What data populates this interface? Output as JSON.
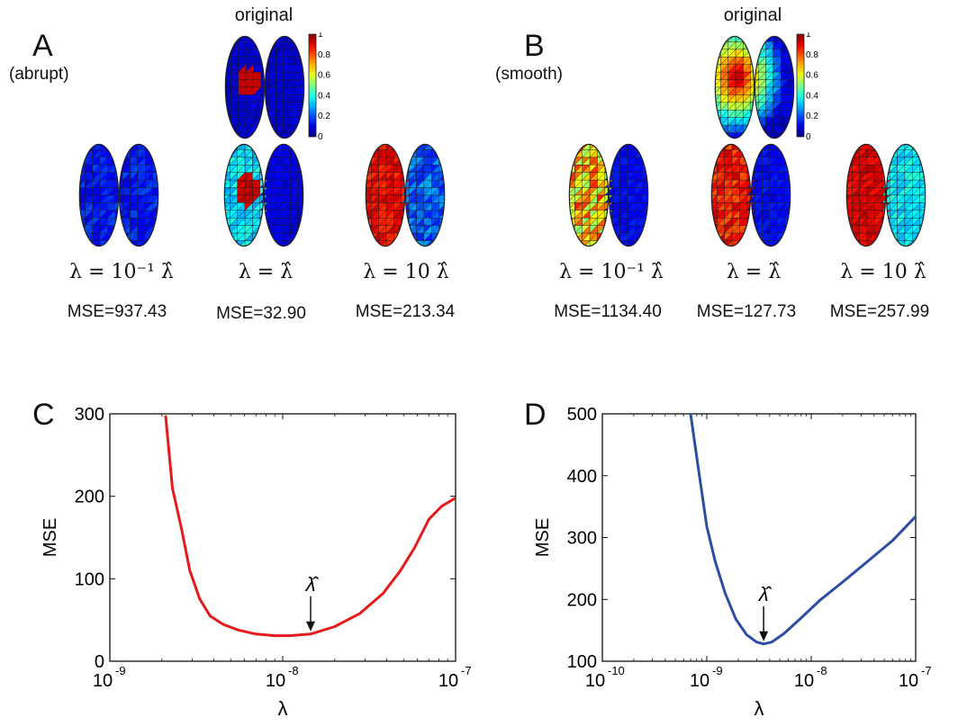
{
  "panels_top": [
    {
      "letter": "A",
      "condition": "(abrupt)",
      "original_label": "original",
      "colorbar_ticks": [
        "1",
        "0.8",
        "0.6",
        "0.4",
        "0.2",
        "0"
      ],
      "maps": [
        {
          "lambda_text": "λ = 10⁻¹ λ̂",
          "mse_text": "MSE=937.43"
        },
        {
          "lambda_text": "λ = λ̂",
          "mse_text": "MSE=32.90"
        },
        {
          "lambda_text": "λ = 10 λ̂",
          "mse_text": "MSE=213.34"
        }
      ]
    },
    {
      "letter": "B",
      "condition": "(smooth)",
      "original_label": "original",
      "colorbar_ticks": [
        "1",
        "0.8",
        "0.6",
        "0.4",
        "0.2",
        "0"
      ],
      "maps": [
        {
          "lambda_text": "λ = 10⁻¹ λ̂",
          "mse_text": "MSE=1134.40"
        },
        {
          "lambda_text": "λ = λ̂",
          "mse_text": "MSE=127.73"
        },
        {
          "lambda_text": "λ = 10 λ̂",
          "mse_text": "MSE=257.99"
        }
      ]
    }
  ],
  "chart_data": [
    {
      "panel": "C",
      "type": "line",
      "xscale": "log",
      "xlim": [
        1e-09,
        1e-07
      ],
      "ylim": [
        0,
        300
      ],
      "xticks": [
        1e-09,
        1e-08,
        1e-07
      ],
      "xtick_labels": [
        "10^-9",
        "10^-8",
        "10^-7"
      ],
      "yticks": [
        0,
        100,
        200,
        300
      ],
      "ytick_labels": [
        "0",
        "100",
        "200",
        "300"
      ],
      "xlabel": "λ",
      "ylabel": "MSE",
      "color": "#e41a1c",
      "annotation": {
        "text": "λ̂",
        "x": 1.45e-08,
        "y": 33
      },
      "series": [
        {
          "x": [
            2.1e-09,
            2.3e-09,
            2.6e-09,
            2.9e-09,
            3.3e-09,
            3.8e-09,
            4.5e-09,
            5.5e-09,
            7e-09,
            9e-09,
            1.1e-08,
            1.45e-08,
            2e-08,
            2.8e-08,
            3.8e-08,
            4.8e-08,
            5.8e-08,
            7e-08,
            8.3e-08,
            1e-07
          ],
          "y": [
            298,
            210,
            160,
            110,
            76,
            55,
            45,
            38,
            33,
            31,
            31,
            33,
            42,
            58,
            82,
            110,
            138,
            172,
            188,
            198
          ]
        }
      ]
    },
    {
      "panel": "D",
      "type": "line",
      "xscale": "log",
      "xlim": [
        1e-10,
        1e-07
      ],
      "ylim": [
        100,
        500
      ],
      "xticks": [
        1e-10,
        1e-09,
        1e-08,
        1e-07
      ],
      "xtick_labels": [
        "10^-10",
        "10^-9",
        "10^-8",
        "10^-7"
      ],
      "yticks": [
        100,
        200,
        300,
        400,
        500
      ],
      "ytick_labels": [
        "100",
        "200",
        "300",
        "400",
        "500"
      ],
      "xlabel": "λ",
      "ylabel": "MSE",
      "color": "#2b4ea2",
      "annotation": {
        "text": "λ̂",
        "x": 3.5e-09,
        "y": 128
      },
      "series": [
        {
          "x": [
            7e-10,
            8.5e-10,
            1e-09,
            1.2e-09,
            1.5e-09,
            1.9e-09,
            2.4e-09,
            3e-09,
            3.5e-09,
            4.2e-09,
            5.5e-09,
            8e-09,
            1.2e-08,
            2e-08,
            3.5e-08,
            6e-08,
            1e-07
          ],
          "y": [
            500,
            400,
            318,
            262,
            210,
            168,
            143,
            131,
            128,
            131,
            145,
            170,
            198,
            228,
            262,
            295,
            334
          ]
        }
      ]
    }
  ]
}
